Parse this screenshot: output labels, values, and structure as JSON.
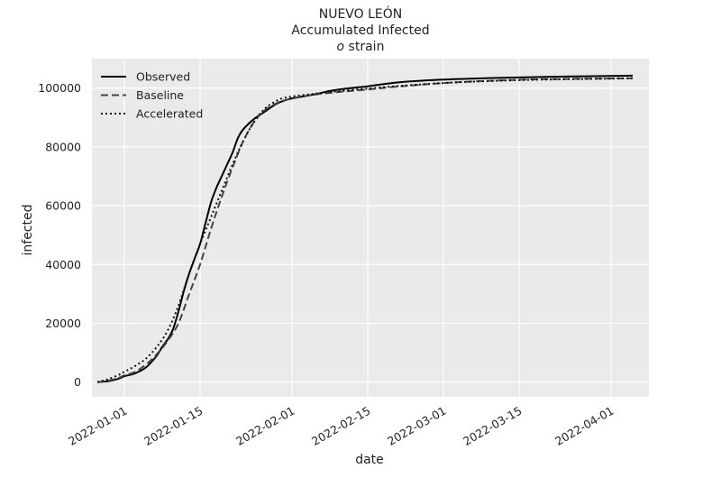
{
  "chart_data": {
    "type": "line",
    "title": "NUEVO LEÓN",
    "subtitle": "Accumulated Infected",
    "subtitle2_symbol": "o",
    "subtitle2_rest": " strain",
    "xlabel": "date",
    "ylabel": "infected",
    "x_axis_type": "date",
    "xlim": [
      "2021-12-26",
      "2022-04-08"
    ],
    "ylim": [
      -5000,
      110000
    ],
    "xticks": [
      "2022-01-01",
      "2022-01-15",
      "2022-02-01",
      "2022-02-15",
      "2022-03-01",
      "2022-03-15",
      "2022-04-01"
    ],
    "yticks": [
      0,
      20000,
      40000,
      60000,
      80000,
      100000
    ],
    "grid": true,
    "legend_position": "top-left",
    "background": "#eaeaea",
    "series": [
      {
        "name": "Observed",
        "color": "#000000",
        "style": "solid",
        "points": [
          [
            "2021-12-27",
            0
          ],
          [
            "2021-12-29",
            300
          ],
          [
            "2021-12-31",
            1200
          ],
          [
            "2022-01-01",
            2000
          ],
          [
            "2022-01-03",
            3000
          ],
          [
            "2022-01-05",
            5000
          ],
          [
            "2022-01-07",
            9000
          ],
          [
            "2022-01-08",
            12000
          ],
          [
            "2022-01-09",
            14500
          ],
          [
            "2022-01-10",
            18000
          ],
          [
            "2022-01-11",
            24000
          ],
          [
            "2022-01-12",
            31000
          ],
          [
            "2022-01-13",
            37000
          ],
          [
            "2022-01-14",
            42000
          ],
          [
            "2022-01-15",
            47000
          ],
          [
            "2022-01-16",
            54000
          ],
          [
            "2022-01-17",
            61000
          ],
          [
            "2022-01-18",
            66000
          ],
          [
            "2022-01-19",
            70000
          ],
          [
            "2022-01-20",
            74000
          ],
          [
            "2022-01-21",
            78000
          ],
          [
            "2022-01-22",
            83000
          ],
          [
            "2022-01-23",
            86000
          ],
          [
            "2022-01-25",
            89500
          ],
          [
            "2022-01-27",
            92000
          ],
          [
            "2022-01-29",
            94500
          ],
          [
            "2022-01-31",
            96000
          ],
          [
            "2022-02-02",
            96800
          ],
          [
            "2022-02-05",
            97800
          ],
          [
            "2022-02-08",
            99000
          ],
          [
            "2022-02-11",
            99800
          ],
          [
            "2022-02-15",
            100600
          ],
          [
            "2022-02-20",
            101800
          ],
          [
            "2022-02-25",
            102500
          ],
          [
            "2022-03-03",
            103000
          ],
          [
            "2022-03-10",
            103400
          ],
          [
            "2022-03-20",
            103800
          ],
          [
            "2022-04-05",
            104200
          ]
        ]
      },
      {
        "name": "Baseline",
        "color": "#444444",
        "style": "dashed",
        "points": [
          [
            "2021-12-27",
            0
          ],
          [
            "2021-12-29",
            500
          ],
          [
            "2021-12-31",
            1500
          ],
          [
            "2022-01-01",
            2300
          ],
          [
            "2022-01-03",
            3500
          ],
          [
            "2022-01-05",
            6000
          ],
          [
            "2022-01-07",
            9500
          ],
          [
            "2022-01-09",
            14000
          ],
          [
            "2022-01-11",
            20000
          ],
          [
            "2022-01-13",
            30000
          ],
          [
            "2022-01-15",
            40000
          ],
          [
            "2022-01-17",
            52000
          ],
          [
            "2022-01-19",
            63000
          ],
          [
            "2022-01-21",
            73000
          ],
          [
            "2022-01-23",
            82000
          ],
          [
            "2022-01-25",
            88500
          ],
          [
            "2022-01-27",
            92500
          ],
          [
            "2022-01-29",
            94700
          ],
          [
            "2022-01-31",
            96000
          ],
          [
            "2022-02-05",
            97700
          ],
          [
            "2022-02-10",
            98700
          ],
          [
            "2022-02-15",
            99500
          ],
          [
            "2022-02-20",
            100400
          ],
          [
            "2022-03-01",
            101700
          ],
          [
            "2022-03-10",
            102500
          ],
          [
            "2022-03-20",
            103000
          ],
          [
            "2022-04-05",
            103300
          ]
        ]
      },
      {
        "name": "Accelerated",
        "color": "#111111",
        "style": "dotted",
        "points": [
          [
            "2021-12-27",
            0
          ],
          [
            "2021-12-29",
            1000
          ],
          [
            "2021-12-31",
            2500
          ],
          [
            "2022-01-01",
            3500
          ],
          [
            "2022-01-03",
            5500
          ],
          [
            "2022-01-05",
            8000
          ],
          [
            "2022-01-07",
            12000
          ],
          [
            "2022-01-09",
            17500
          ],
          [
            "2022-01-11",
            26000
          ],
          [
            "2022-01-13",
            37000
          ],
          [
            "2022-01-15",
            47000
          ],
          [
            "2022-01-17",
            56000
          ],
          [
            "2022-01-19",
            65000
          ],
          [
            "2022-01-21",
            74000
          ],
          [
            "2022-01-23",
            82000
          ],
          [
            "2022-01-25",
            88500
          ],
          [
            "2022-01-27",
            93000
          ],
          [
            "2022-01-29",
            95500
          ],
          [
            "2022-01-31",
            96800
          ],
          [
            "2022-02-05",
            98000
          ],
          [
            "2022-02-10",
            99000
          ],
          [
            "2022-02-15",
            99800
          ],
          [
            "2022-02-20",
            100600
          ],
          [
            "2022-03-01",
            101700
          ],
          [
            "2022-03-10",
            102400
          ],
          [
            "2022-03-20",
            102900
          ],
          [
            "2022-04-05",
            103300
          ]
        ]
      }
    ]
  }
}
